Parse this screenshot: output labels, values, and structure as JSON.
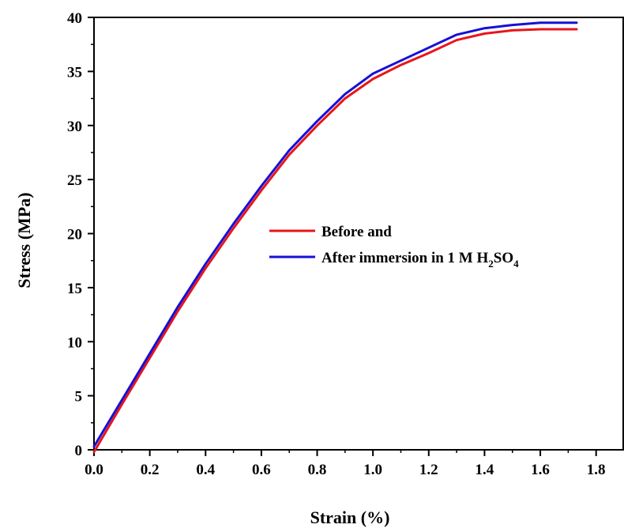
{
  "chart_data": {
    "type": "line",
    "title": "",
    "xlabel": "Strain (%)",
    "ylabel": "Stress  (MPa)",
    "xlim": [
      0,
      1.9
    ],
    "ylim": [
      0,
      40
    ],
    "xticks": [
      "0.0",
      "0.2",
      "0.4",
      "0.6",
      "0.8",
      "1.0",
      "1.2",
      "1.4",
      "1.6",
      "1.8"
    ],
    "yticks": [
      "0",
      "5",
      "10",
      "15",
      "20",
      "25",
      "30",
      "35",
      "40"
    ],
    "grid": false,
    "legend_position": "center-right",
    "series": [
      {
        "name": "Before  and",
        "color": "#e8151b",
        "x": [
          0.0,
          0.1,
          0.2,
          0.3,
          0.4,
          0.5,
          0.6,
          0.7,
          0.8,
          0.9,
          1.0,
          1.1,
          1.2,
          1.3,
          1.4,
          1.5,
          1.6,
          1.73
        ],
        "y": [
          -0.2,
          4.2,
          8.5,
          12.8,
          16.8,
          20.5,
          24.0,
          27.3,
          30.0,
          32.5,
          34.3,
          35.6,
          36.7,
          37.9,
          38.5,
          38.8,
          38.9,
          38.9
        ]
      },
      {
        "name": "After  immersion in 1 M H2SO4",
        "color": "#1610d6",
        "x": [
          0.0,
          0.1,
          0.2,
          0.3,
          0.4,
          0.5,
          0.6,
          0.7,
          0.8,
          0.9,
          1.0,
          1.1,
          1.2,
          1.3,
          1.4,
          1.5,
          1.6,
          1.73
        ],
        "y": [
          0.3,
          4.6,
          8.9,
          13.2,
          17.2,
          20.9,
          24.4,
          27.7,
          30.4,
          32.9,
          34.8,
          36.0,
          37.2,
          38.4,
          39.0,
          39.3,
          39.5,
          39.5
        ]
      }
    ],
    "legend": {
      "entries": [
        {
          "prefix": "Before  and",
          "sub1": "",
          "mid": "",
          "sub2": ""
        },
        {
          "prefix": "After  immersion in 1 M H",
          "sub1": "2",
          "mid": "SO",
          "sub2": "4"
        }
      ]
    }
  }
}
